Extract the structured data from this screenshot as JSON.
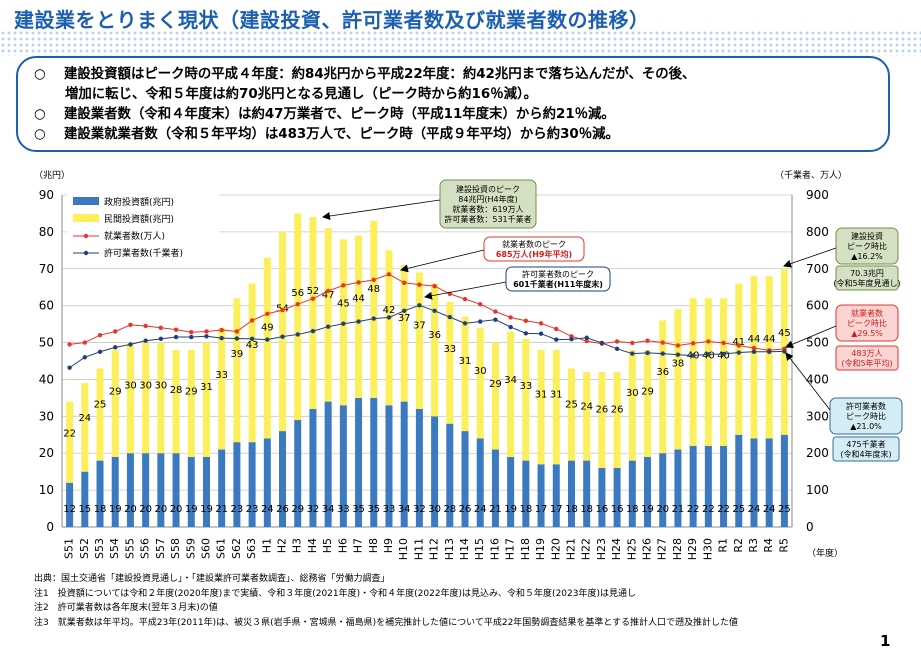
{
  "title": "建設業をとりまく現状（建設投資、許可業者数及び就業者数の推移）",
  "summary": [
    {
      "bullet": "○",
      "text": "建設投資額はピーク時の平成４年度：約84兆円から平成22年度：約42兆円まで落ち込んだが、その後、",
      "cont": "増加に転じ、令和５年度は約70兆円となる見通し（ピーク時から約16％減）。"
    },
    {
      "bullet": "○",
      "text": "建設業者数（令和４年度末）は約47万業者で、ピーク時（平成11年度末）から約21％減。"
    },
    {
      "bullet": "○",
      "text": "建設業就業者数（令和５年平均）は483万人で、ピーク時（平成９年平均）から約30％減。"
    }
  ],
  "chart_data": {
    "type": "bar",
    "categories": [
      "S51",
      "S52",
      "S53",
      "S54",
      "S55",
      "S56",
      "S57",
      "S58",
      "S59",
      "S60",
      "S61",
      "S62",
      "S63",
      "H1",
      "H2",
      "H3",
      "H4",
      "H5",
      "H6",
      "H7",
      "H8",
      "H9",
      "H10",
      "H11",
      "H12",
      "H13",
      "H14",
      "H15",
      "H16",
      "H17",
      "H18",
      "H19",
      "H20",
      "H21",
      "H22",
      "H23",
      "H24",
      "H25",
      "H26",
      "H27",
      "H28",
      "H29",
      "H30",
      "R1",
      "R2",
      "R3",
      "R4",
      "R5"
    ],
    "stacked_series": [
      {
        "name": "政府投資額(兆円)",
        "color": "#3b79c0",
        "values": [
          12,
          15,
          18,
          19,
          20,
          20,
          20,
          20,
          19,
          19,
          21,
          23,
          23,
          24,
          26,
          29,
          32,
          34,
          33,
          35,
          35,
          33,
          34,
          32,
          30,
          28,
          26,
          24,
          21,
          19,
          18,
          17,
          17,
          18,
          18,
          16,
          16,
          18,
          19,
          20,
          21,
          22,
          22,
          22,
          25,
          24,
          24,
          25
        ]
      },
      {
        "name": "民間投資額(兆円)",
        "color": "#fbf05c",
        "values": [
          22,
          24,
          25,
          29,
          30,
          30,
          30,
          28,
          29,
          31,
          33,
          39,
          43,
          49,
          54,
          56,
          52,
          47,
          45,
          44,
          48,
          42,
          37,
          37,
          36,
          33,
          31,
          30,
          29,
          34,
          33,
          31,
          31,
          25,
          24,
          26,
          26,
          30,
          29,
          36,
          38,
          40,
          40,
          40,
          41,
          44,
          44,
          45
        ]
      }
    ],
    "line_series": [
      {
        "name": "就業者数(万人)",
        "color": "#e8352c",
        "axis": "right",
        "unit": "万人",
        "values": [
          495,
          500,
          520,
          530,
          548,
          545,
          540,
          535,
          528,
          530,
          534,
          530,
          560,
          578,
          588,
          604,
          619,
          640,
          655,
          663,
          670,
          685,
          662,
          657,
          653,
          632,
          618,
          604,
          584,
          568,
          559,
          552,
          537,
          517,
          504,
          497,
          503,
          499,
          505,
          500,
          492,
          498,
          503,
          499,
          492,
          485,
          479,
          483
        ]
      },
      {
        "name": "許可業者数(千業者)",
        "color": "#1f3f7f",
        "axis": "right",
        "unit": "千業者",
        "values": [
          432,
          460,
          475,
          487,
          495,
          505,
          510,
          515,
          515,
          517,
          512,
          511,
          510,
          508,
          516,
          522,
          531,
          543,
          551,
          557,
          565,
          568,
          586,
          601,
          586,
          569,
          552,
          557,
          562,
          542,
          525,
          524,
          508,
          509,
          513,
          499,
          483,
          470,
          472,
          470,
          467,
          465,
          468,
          469,
          473,
          475,
          475,
          476
        ]
      }
    ],
    "left_axis": {
      "label": "（兆円）",
      "min": 0,
      "max": 90,
      "ticks": [
        0,
        10,
        20,
        30,
        40,
        50,
        60,
        70,
        80,
        90
      ]
    },
    "right_axis": {
      "label": "（千業者、万人）",
      "min": 0,
      "max": 900,
      "ticks": [
        0,
        100,
        200,
        300,
        400,
        500,
        600,
        700,
        800,
        900
      ]
    },
    "xlabel": "（年度）",
    "legend": [
      "政府投資額(兆円)",
      "民間投資額(兆円)",
      "就業者数(万人)",
      "許可業者数(千業者)"
    ],
    "legend_position": "top-left",
    "annotations": {
      "peak_invest": {
        "lines": [
          "建設投資のピーク",
          "84兆円(H4年度)",
          "就業者数：619万人",
          "許可業者数：531千業者"
        ]
      },
      "peak_workers": {
        "lines": [
          "就業者数のピーク",
          "685万人(H9年平均)"
        ]
      },
      "peak_firms": {
        "lines": [
          "許可業者数のピーク",
          "601千業者(H11年度末)"
        ]
      },
      "r_invest": {
        "lines": [
          "建設投資",
          "ピーク時比",
          "▲16.2%"
        ]
      },
      "r_invest_sub": {
        "lines": [
          "70.3兆円",
          "(令和5年度見通し)"
        ]
      },
      "r_workers": {
        "lines": [
          "就業者数",
          "ピーク時比",
          "▲29.5%"
        ]
      },
      "r_workers_sub": {
        "lines": [
          "483万人",
          "(令和5年平均)"
        ]
      },
      "r_firms": {
        "lines": [
          "許可業者数",
          "ピーク時比",
          "▲21.0%"
        ]
      },
      "r_firms_sub": {
        "lines": [
          "475千業者",
          "(令和4年度末)"
        ]
      }
    }
  },
  "notes": [
    "出典：国土交通省「建設投資見通し」・「建設業許可業者数調査」、総務省「労働力調査」",
    "注1　投資額については令和２年度(2020年度)まで実績、令和３年度(2021年度)・令和４年度(2022年度)は見込み、令和５年度(2023年度)は見通し",
    "注2　許可業者数は各年度末(翌年３月末)の値",
    "注3　就業者数は年平均。平成23年(2011年)は、被災３県(岩手県・宮城県・福島県)を補完推計した値について平成22年国勢調査結果を基準とする推計人口で遡及推計した値"
  ],
  "page_number": "1"
}
